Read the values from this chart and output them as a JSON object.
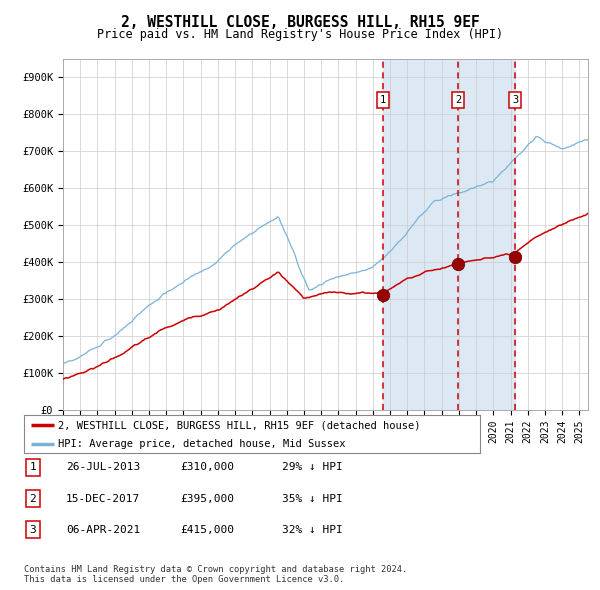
{
  "title1": "2, WESTHILL CLOSE, BURGESS HILL, RH15 9EF",
  "title2": "Price paid vs. HM Land Registry's House Price Index (HPI)",
  "xlim_start": 1995.0,
  "xlim_end": 2025.5,
  "ylim": [
    0,
    950000
  ],
  "yticks": [
    0,
    100000,
    200000,
    300000,
    400000,
    500000,
    600000,
    700000,
    800000,
    900000
  ],
  "ytick_labels": [
    "£0",
    "£100K",
    "£200K",
    "£300K",
    "£400K",
    "£500K",
    "£600K",
    "£700K",
    "£800K",
    "£900K"
  ],
  "xticks": [
    1995,
    1996,
    1997,
    1998,
    1999,
    2000,
    2001,
    2002,
    2003,
    2004,
    2005,
    2006,
    2007,
    2008,
    2009,
    2010,
    2011,
    2012,
    2013,
    2014,
    2015,
    2016,
    2017,
    2018,
    2019,
    2020,
    2021,
    2022,
    2023,
    2024,
    2025
  ],
  "sales": [
    {
      "date": 2013.57,
      "price": 310000,
      "label": "1"
    },
    {
      "date": 2017.96,
      "price": 395000,
      "label": "2"
    },
    {
      "date": 2021.26,
      "price": 415000,
      "label": "3"
    }
  ],
  "sale_info": [
    {
      "label": "1",
      "date_str": "26-JUL-2013",
      "price_str": "£310,000",
      "pct": "29% ↓ HPI"
    },
    {
      "label": "2",
      "date_str": "15-DEC-2017",
      "price_str": "£395,000",
      "pct": "35% ↓ HPI"
    },
    {
      "label": "3",
      "date_str": "06-APR-2021",
      "price_str": "£415,000",
      "pct": "32% ↓ HPI"
    }
  ],
  "vline_color": "#cc0000",
  "shade_color": "#dce9f5",
  "hpi_color": "#7ab3d8",
  "price_color": "#cc0000",
  "grid_color": "#cccccc",
  "bg_color": "#ffffff",
  "legend_house": "2, WESTHILL CLOSE, BURGESS HILL, RH15 9EF (detached house)",
  "legend_hpi": "HPI: Average price, detached house, Mid Sussex",
  "footnote": "Contains HM Land Registry data © Crown copyright and database right 2024.\nThis data is licensed under the Open Government Licence v3.0."
}
